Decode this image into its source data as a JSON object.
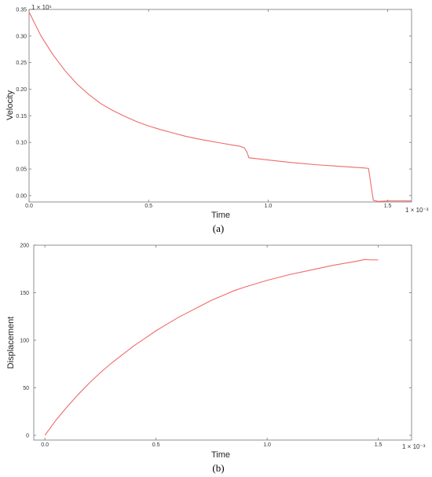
{
  "colors": {
    "line": "#f06a6a",
    "frame": "#777777",
    "text": "#333333"
  },
  "chart_data": [
    {
      "type": "line",
      "caption": "(a)",
      "xlabel": "Time",
      "ylabel": "Velocity",
      "x_multiplier": "1 × 10⁻³",
      "y_multiplier": "1 × 10⁶",
      "xlim": [
        0,
        1.6
      ],
      "ylim": [
        -0.012,
        0.35
      ],
      "x_ticks": [
        0.0,
        0.5,
        1.0,
        1.5
      ],
      "x_tick_labels": [
        "0.0",
        "0.5",
        "1.0",
        "1.5"
      ],
      "y_ticks": [
        0.35,
        0.3,
        0.25,
        0.2,
        0.15,
        0.1,
        0.05,
        0.0
      ],
      "y_tick_labels": [
        "0.35",
        "0.30",
        "0.25",
        "0.20",
        "0.15",
        "0.10",
        "0.05",
        "0.00"
      ],
      "grid": false,
      "series": [
        {
          "x": [
            0.0,
            0.05,
            0.1,
            0.15,
            0.2,
            0.25,
            0.3,
            0.35,
            0.4,
            0.45,
            0.5,
            0.55,
            0.6,
            0.65,
            0.7,
            0.75,
            0.8,
            0.85,
            0.88,
            0.9,
            0.91,
            0.92,
            1.0,
            1.1,
            1.2,
            1.3,
            1.4,
            1.42,
            1.43,
            1.44,
            1.46,
            1.5,
            1.55,
            1.6
          ],
          "y": [
            0.345,
            0.3,
            0.265,
            0.235,
            0.21,
            0.19,
            0.173,
            0.16,
            0.149,
            0.139,
            0.131,
            0.124,
            0.118,
            0.112,
            0.107,
            0.103,
            0.099,
            0.095,
            0.093,
            0.09,
            0.083,
            0.071,
            0.067,
            0.062,
            0.058,
            0.055,
            0.052,
            0.051,
            0.02,
            -0.009,
            -0.011,
            -0.01,
            -0.01,
            -0.01
          ]
        }
      ]
    },
    {
      "type": "line",
      "caption": "(b)",
      "xlabel": "Time",
      "ylabel": "Displacement",
      "x_multiplier": "1 × 10⁻³",
      "xlim": [
        -0.05,
        1.65
      ],
      "ylim": [
        -5,
        200
      ],
      "x_ticks": [
        0.0,
        0.5,
        1.0,
        1.5
      ],
      "x_tick_labels": [
        "0.0",
        "0.5",
        "1.0",
        "1.5"
      ],
      "y_ticks": [
        200,
        150,
        100,
        50,
        0
      ],
      "y_tick_labels": [
        "200",
        "150",
        "100",
        "50",
        "0"
      ],
      "grid": false,
      "series": [
        {
          "x": [
            0.0,
            0.05,
            0.1,
            0.15,
            0.2,
            0.25,
            0.3,
            0.35,
            0.4,
            0.45,
            0.5,
            0.55,
            0.6,
            0.65,
            0.7,
            0.75,
            0.8,
            0.85,
            0.9,
            1.0,
            1.1,
            1.2,
            1.3,
            1.4,
            1.44,
            1.47,
            1.5
          ],
          "y": [
            0.0,
            16,
            30,
            43,
            55,
            66,
            76,
            85,
            94,
            102,
            110,
            117,
            124,
            130,
            136,
            142,
            147,
            152,
            156,
            163,
            169,
            174,
            179,
            183,
            185,
            184.5,
            184.5
          ]
        }
      ]
    }
  ]
}
